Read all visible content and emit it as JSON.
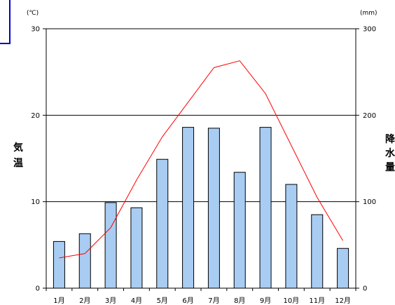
{
  "chart_data": {
    "type": "bar",
    "categories": [
      "1月",
      "2月",
      "3月",
      "4月",
      "5月",
      "6月",
      "7月",
      "8月",
      "9月",
      "10月",
      "11月",
      "12月"
    ],
    "series": [
      {
        "type": "bar",
        "axis": "right",
        "values": [
          54,
          63,
          99,
          93,
          149,
          186,
          185,
          134,
          186,
          120,
          85,
          46
        ]
      },
      {
        "type": "line",
        "axis": "left",
        "values": [
          3.5,
          4.0,
          7.0,
          12.5,
          17.5,
          21.5,
          25.5,
          26.3,
          22.5,
          16.5,
          10.5,
          5.5
        ]
      }
    ],
    "y_left": {
      "unit": "(℃)",
      "label": "気温",
      "ticks": [
        0,
        10,
        20,
        30
      ],
      "ylim": [
        0,
        30
      ]
    },
    "y_right": {
      "unit": "(mm)",
      "label": "降水量",
      "ticks": [
        0,
        100,
        200,
        300
      ],
      "ylim": [
        0,
        300
      ]
    },
    "grid": true,
    "colors": {
      "bar_fill": "#a9ccf2",
      "bar_stroke": "#000000",
      "line": "#ff0000",
      "frame_accent": "#0000cc"
    }
  }
}
